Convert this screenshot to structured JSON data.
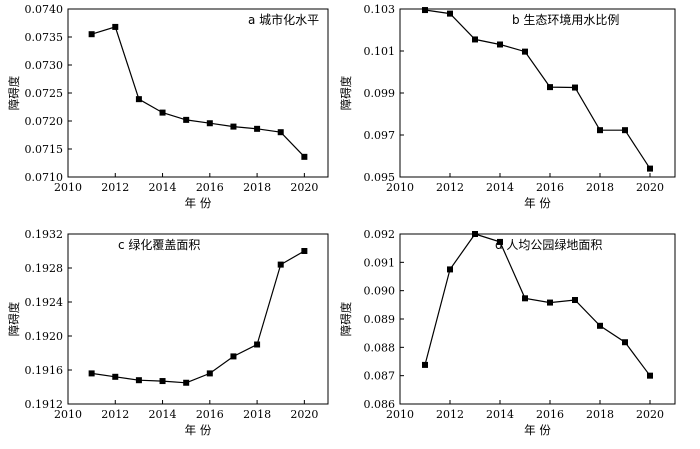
{
  "chart_data": [
    {
      "type": "line",
      "title": "a 城市化水平",
      "xlabel": "年 份",
      "ylabel": "障碍度",
      "xlim": [
        2010,
        2021
      ],
      "ylim": [
        0.071,
        0.074
      ],
      "xticks": [
        2010,
        2012,
        2014,
        2016,
        2018,
        2020
      ],
      "yticks": [
        "0.0710",
        "0.0715",
        "0.0720",
        "0.0725",
        "0.0730",
        "0.0735",
        "0.0740"
      ],
      "x": [
        2011,
        2012,
        2013,
        2014,
        2015,
        2016,
        2017,
        2018,
        2019,
        2020
      ],
      "y": [
        0.07355,
        0.07368,
        0.07239,
        0.07215,
        0.07202,
        0.07196,
        0.0719,
        0.07186,
        0.0718,
        0.07136
      ],
      "marker": "square",
      "grid": false
    },
    {
      "type": "line",
      "title": "b 生态环境用水比例",
      "xlabel": "年 份",
      "ylabel": "障碍度",
      "xlim": [
        2010,
        2021
      ],
      "ylim": [
        0.095,
        0.103
      ],
      "xticks": [
        2010,
        2012,
        2014,
        2016,
        2018,
        2020
      ],
      "yticks": [
        "0.095",
        "0.097",
        "0.099",
        "0.101",
        "0.103"
      ],
      "x": [
        2011,
        2012,
        2013,
        2014,
        2015,
        2016,
        2017,
        2018,
        2019,
        2020
      ],
      "y": [
        0.10295,
        0.10278,
        0.10155,
        0.10131,
        0.10097,
        0.09928,
        0.09926,
        0.09723,
        0.09723,
        0.0954
      ],
      "marker": "square",
      "grid": false
    },
    {
      "type": "line",
      "title": "c 绿化覆盖面积",
      "xlabel": "年 份",
      "ylabel": "障碍度",
      "xlim": [
        2010,
        2021
      ],
      "ylim": [
        0.1912,
        0.1932
      ],
      "xticks": [
        2010,
        2012,
        2014,
        2016,
        2018,
        2020
      ],
      "yticks": [
        "0.1912",
        "0.1916",
        "0.1920",
        "0.1924",
        "0.1928",
        "0.1932"
      ],
      "x": [
        2011,
        2012,
        2013,
        2014,
        2015,
        2016,
        2017,
        2018,
        2019,
        2020
      ],
      "y": [
        0.19156,
        0.19152,
        0.19148,
        0.19147,
        0.19145,
        0.19156,
        0.19176,
        0.1919,
        0.19284,
        0.193
      ],
      "marker": "square",
      "grid": false
    },
    {
      "type": "line",
      "title": "d 人均公园绿地面积",
      "xlabel": "年 份",
      "ylabel": "障碍度",
      "xlim": [
        2010,
        2021
      ],
      "ylim": [
        0.086,
        0.092
      ],
      "xticks": [
        2010,
        2012,
        2014,
        2016,
        2018,
        2020
      ],
      "yticks": [
        "0.086",
        "0.087",
        "0.088",
        "0.089",
        "0.090",
        "0.091",
        "0.092"
      ],
      "x": [
        2011,
        2012,
        2013,
        2014,
        2015,
        2016,
        2017,
        2018,
        2019,
        2020
      ],
      "y": [
        0.08738,
        0.09075,
        0.092,
        0.09172,
        0.08973,
        0.08958,
        0.08967,
        0.08876,
        0.08818,
        0.087
      ],
      "marker": "square",
      "grid": false
    }
  ]
}
